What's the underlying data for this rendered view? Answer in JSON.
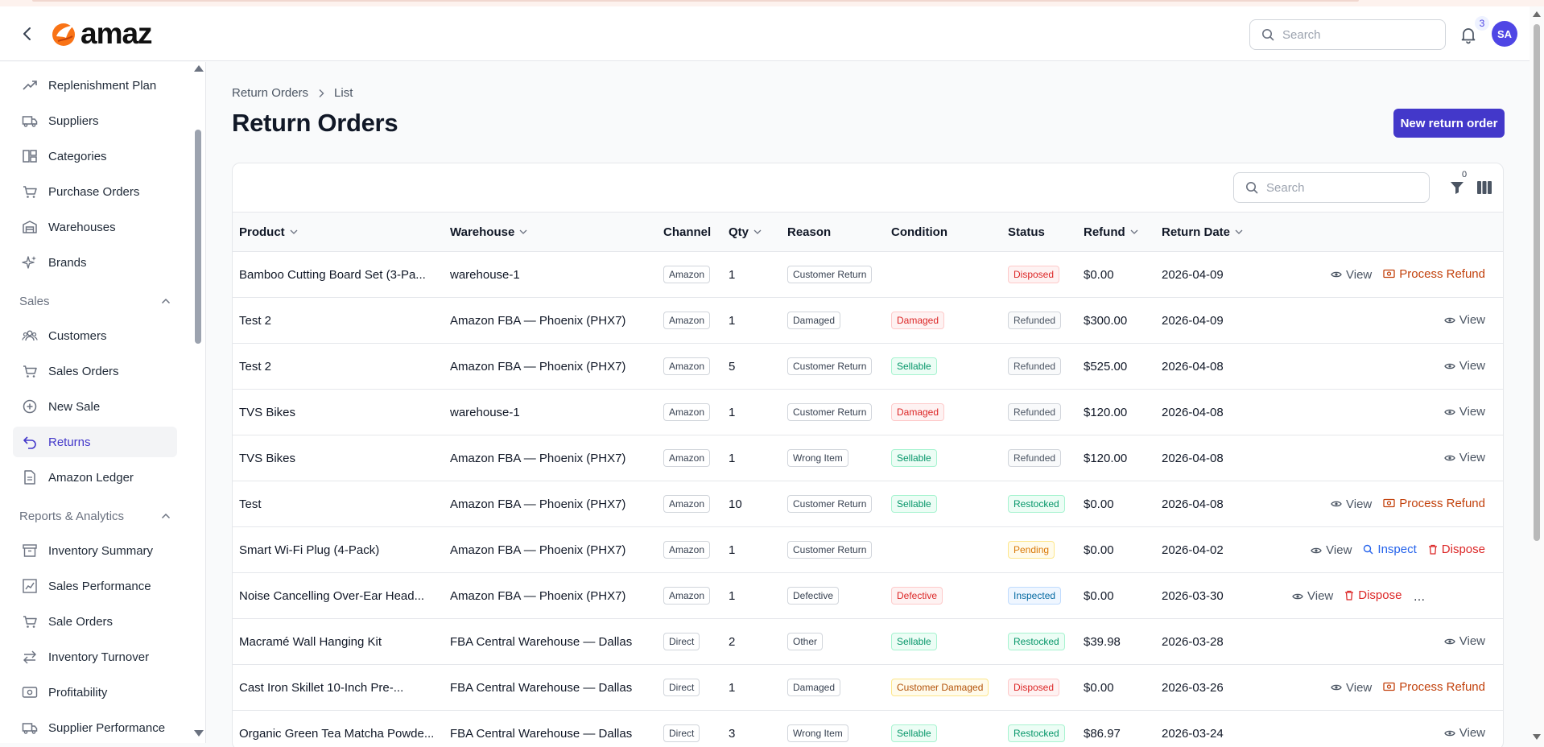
{
  "header": {
    "logo_text": "amaz",
    "search_placeholder": "Search",
    "notification_count": "3",
    "avatar_initials": "SA"
  },
  "sidebar": {
    "items_top": [
      {
        "label": "Replenishment Plan",
        "icon": "trending-up-icon"
      },
      {
        "label": "Suppliers",
        "icon": "truck-icon"
      },
      {
        "label": "Categories",
        "icon": "categories-icon"
      },
      {
        "label": "Purchase Orders",
        "icon": "shopping-cart-icon"
      },
      {
        "label": "Warehouses",
        "icon": "warehouse-icon"
      },
      {
        "label": "Brands",
        "icon": "sparkles-icon"
      }
    ],
    "sales_section": "Sales",
    "sales_items": [
      {
        "label": "Customers",
        "icon": "users-icon"
      },
      {
        "label": "Sales Orders",
        "icon": "cart-icon"
      },
      {
        "label": "New Sale",
        "icon": "plus-circle-icon"
      },
      {
        "label": "Returns",
        "icon": "return-arrow-icon",
        "active": true
      },
      {
        "label": "Amazon Ledger",
        "icon": "document-icon"
      }
    ],
    "reports_section": "Reports & Analytics",
    "reports_items": [
      {
        "label": "Inventory Summary",
        "icon": "archive-icon"
      },
      {
        "label": "Sales Performance",
        "icon": "chart-icon"
      },
      {
        "label": "Sale Orders",
        "icon": "cart-icon"
      },
      {
        "label": "Inventory Turnover",
        "icon": "arrows-exchange-icon"
      },
      {
        "label": "Profitability",
        "icon": "money-icon"
      },
      {
        "label": "Supplier Performance",
        "icon": "truck-icon"
      }
    ]
  },
  "breadcrumb": {
    "parent": "Return Orders",
    "current": "List"
  },
  "page": {
    "title": "Return Orders",
    "new_button": "New return order"
  },
  "table": {
    "search_placeholder": "Search",
    "filter_count": "0",
    "columns": {
      "product": "Product",
      "warehouse": "Warehouse",
      "channel": "Channel",
      "qty": "Qty",
      "reason": "Reason",
      "condition": "Condition",
      "status": "Status",
      "refund": "Refund",
      "return_date": "Return Date"
    },
    "action_labels": {
      "view": "View",
      "process_refund": "Process Refund",
      "inspect": "Inspect",
      "dispose": "Dispose"
    },
    "rows": [
      {
        "product": "Bamboo Cutting Board Set (3-Pa...",
        "warehouse": "warehouse-1",
        "channel": "Amazon",
        "qty": "1",
        "reason": "Customer Return",
        "condition": "",
        "status": "Disposed",
        "refund": "$0.00",
        "date": "2026-04-09",
        "actions": [
          "view",
          "process_refund"
        ]
      },
      {
        "product": "Test 2",
        "warehouse": "Amazon FBA — Phoenix (PHX7)",
        "channel": "Amazon",
        "qty": "1",
        "reason": "Damaged",
        "condition": "Damaged",
        "status": "Refunded",
        "refund": "$300.00",
        "date": "2026-04-09",
        "actions": [
          "view"
        ]
      },
      {
        "product": "Test 2",
        "warehouse": "Amazon FBA — Phoenix (PHX7)",
        "channel": "Amazon",
        "qty": "5",
        "reason": "Customer Return",
        "condition": "Sellable",
        "status": "Refunded",
        "refund": "$525.00",
        "date": "2026-04-08",
        "actions": [
          "view"
        ]
      },
      {
        "product": "TVS Bikes",
        "warehouse": "warehouse-1",
        "channel": "Amazon",
        "qty": "1",
        "reason": "Customer Return",
        "condition": "Damaged",
        "status": "Refunded",
        "refund": "$120.00",
        "date": "2026-04-08",
        "actions": [
          "view"
        ]
      },
      {
        "product": "TVS Bikes",
        "warehouse": "Amazon FBA — Phoenix (PHX7)",
        "channel": "Amazon",
        "qty": "1",
        "reason": "Wrong Item",
        "condition": "Sellable",
        "status": "Refunded",
        "refund": "$120.00",
        "date": "2026-04-08",
        "actions": [
          "view"
        ]
      },
      {
        "product": "Test",
        "warehouse": "Amazon FBA — Phoenix (PHX7)",
        "channel": "Amazon",
        "qty": "10",
        "reason": "Customer Return",
        "condition": "Sellable",
        "status": "Restocked",
        "refund": "$0.00",
        "date": "2026-04-08",
        "actions": [
          "view",
          "process_refund"
        ]
      },
      {
        "product": "Smart Wi-Fi Plug (4-Pack)",
        "warehouse": "Amazon FBA — Phoenix (PHX7)",
        "channel": "Amazon",
        "qty": "1",
        "reason": "Customer Return",
        "condition": "",
        "status": "Pending",
        "refund": "$0.00",
        "date": "2026-04-02",
        "actions": [
          "view",
          "inspect",
          "dispose"
        ]
      },
      {
        "product": "Noise Cancelling Over-Ear Head...",
        "warehouse": "Amazon FBA — Phoenix (PHX7)",
        "channel": "Amazon",
        "qty": "1",
        "reason": "Defective",
        "condition": "Defective",
        "status": "Inspected",
        "refund": "$0.00",
        "date": "2026-03-30",
        "actions": [
          "view",
          "dispose",
          "process_refund"
        ]
      },
      {
        "product": "Macramé Wall Hanging Kit",
        "warehouse": "FBA Central Warehouse — Dallas",
        "channel": "Direct",
        "qty": "2",
        "reason": "Other",
        "condition": "Sellable",
        "status": "Restocked",
        "refund": "$39.98",
        "date": "2026-03-28",
        "actions": [
          "view"
        ]
      },
      {
        "product": "Cast Iron Skillet 10-Inch Pre-...",
        "warehouse": "FBA Central Warehouse — Dallas",
        "channel": "Direct",
        "qty": "1",
        "reason": "Damaged",
        "condition": "Customer Damaged",
        "status": "Disposed",
        "refund": "$0.00",
        "date": "2026-03-26",
        "actions": [
          "view",
          "process_refund"
        ]
      },
      {
        "product": "Organic Green Tea Matcha Powde...",
        "warehouse": "FBA Central Warehouse — Dallas",
        "channel": "Direct",
        "qty": "3",
        "reason": "Wrong Item",
        "condition": "Sellable",
        "status": "Restocked",
        "refund": "$86.97",
        "date": "2026-03-24",
        "actions": [
          "view"
        ]
      }
    ]
  },
  "colors": {
    "accent": "#4338ca",
    "disposed": "#dc2626",
    "refunded": "#4b5563",
    "restocked": "#059669",
    "pending": "#d97706",
    "inspected": "#0369a1",
    "damaged": "#dc2626",
    "sellable": "#059669",
    "defective": "#dc2626",
    "customer_damaged": "#b45309",
    "view": "#4b5563",
    "process_refund": "#c2410c",
    "inspect": "#2563eb",
    "dispose": "#dc2626"
  }
}
